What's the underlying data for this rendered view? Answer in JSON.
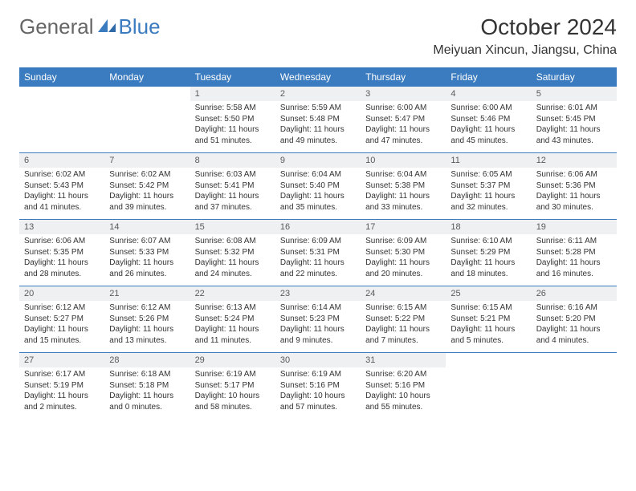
{
  "brand": {
    "part1": "General",
    "part2": "Blue"
  },
  "title": "October 2024",
  "location": "Meiyuan Xincun, Jiangsu, China",
  "colors": {
    "header_bg": "#3b7bbf",
    "header_text": "#ffffff",
    "num_bg": "#eef0f2",
    "rule": "#3b7bbf"
  },
  "day_names": [
    "Sunday",
    "Monday",
    "Tuesday",
    "Wednesday",
    "Thursday",
    "Friday",
    "Saturday"
  ],
  "weeks": [
    [
      null,
      null,
      {
        "n": "1",
        "sunrise": "5:58 AM",
        "sunset": "5:50 PM",
        "daylight": "11 hours and 51 minutes."
      },
      {
        "n": "2",
        "sunrise": "5:59 AM",
        "sunset": "5:48 PM",
        "daylight": "11 hours and 49 minutes."
      },
      {
        "n": "3",
        "sunrise": "6:00 AM",
        "sunset": "5:47 PM",
        "daylight": "11 hours and 47 minutes."
      },
      {
        "n": "4",
        "sunrise": "6:00 AM",
        "sunset": "5:46 PM",
        "daylight": "11 hours and 45 minutes."
      },
      {
        "n": "5",
        "sunrise": "6:01 AM",
        "sunset": "5:45 PM",
        "daylight": "11 hours and 43 minutes."
      }
    ],
    [
      {
        "n": "6",
        "sunrise": "6:02 AM",
        "sunset": "5:43 PM",
        "daylight": "11 hours and 41 minutes."
      },
      {
        "n": "7",
        "sunrise": "6:02 AM",
        "sunset": "5:42 PM",
        "daylight": "11 hours and 39 minutes."
      },
      {
        "n": "8",
        "sunrise": "6:03 AM",
        "sunset": "5:41 PM",
        "daylight": "11 hours and 37 minutes."
      },
      {
        "n": "9",
        "sunrise": "6:04 AM",
        "sunset": "5:40 PM",
        "daylight": "11 hours and 35 minutes."
      },
      {
        "n": "10",
        "sunrise": "6:04 AM",
        "sunset": "5:38 PM",
        "daylight": "11 hours and 33 minutes."
      },
      {
        "n": "11",
        "sunrise": "6:05 AM",
        "sunset": "5:37 PM",
        "daylight": "11 hours and 32 minutes."
      },
      {
        "n": "12",
        "sunrise": "6:06 AM",
        "sunset": "5:36 PM",
        "daylight": "11 hours and 30 minutes."
      }
    ],
    [
      {
        "n": "13",
        "sunrise": "6:06 AM",
        "sunset": "5:35 PM",
        "daylight": "11 hours and 28 minutes."
      },
      {
        "n": "14",
        "sunrise": "6:07 AM",
        "sunset": "5:33 PM",
        "daylight": "11 hours and 26 minutes."
      },
      {
        "n": "15",
        "sunrise": "6:08 AM",
        "sunset": "5:32 PM",
        "daylight": "11 hours and 24 minutes."
      },
      {
        "n": "16",
        "sunrise": "6:09 AM",
        "sunset": "5:31 PM",
        "daylight": "11 hours and 22 minutes."
      },
      {
        "n": "17",
        "sunrise": "6:09 AM",
        "sunset": "5:30 PM",
        "daylight": "11 hours and 20 minutes."
      },
      {
        "n": "18",
        "sunrise": "6:10 AM",
        "sunset": "5:29 PM",
        "daylight": "11 hours and 18 minutes."
      },
      {
        "n": "19",
        "sunrise": "6:11 AM",
        "sunset": "5:28 PM",
        "daylight": "11 hours and 16 minutes."
      }
    ],
    [
      {
        "n": "20",
        "sunrise": "6:12 AM",
        "sunset": "5:27 PM",
        "daylight": "11 hours and 15 minutes."
      },
      {
        "n": "21",
        "sunrise": "6:12 AM",
        "sunset": "5:26 PM",
        "daylight": "11 hours and 13 minutes."
      },
      {
        "n": "22",
        "sunrise": "6:13 AM",
        "sunset": "5:24 PM",
        "daylight": "11 hours and 11 minutes."
      },
      {
        "n": "23",
        "sunrise": "6:14 AM",
        "sunset": "5:23 PM",
        "daylight": "11 hours and 9 minutes."
      },
      {
        "n": "24",
        "sunrise": "6:15 AM",
        "sunset": "5:22 PM",
        "daylight": "11 hours and 7 minutes."
      },
      {
        "n": "25",
        "sunrise": "6:15 AM",
        "sunset": "5:21 PM",
        "daylight": "11 hours and 5 minutes."
      },
      {
        "n": "26",
        "sunrise": "6:16 AM",
        "sunset": "5:20 PM",
        "daylight": "11 hours and 4 minutes."
      }
    ],
    [
      {
        "n": "27",
        "sunrise": "6:17 AM",
        "sunset": "5:19 PM",
        "daylight": "11 hours and 2 minutes."
      },
      {
        "n": "28",
        "sunrise": "6:18 AM",
        "sunset": "5:18 PM",
        "daylight": "11 hours and 0 minutes."
      },
      {
        "n": "29",
        "sunrise": "6:19 AM",
        "sunset": "5:17 PM",
        "daylight": "10 hours and 58 minutes."
      },
      {
        "n": "30",
        "sunrise": "6:19 AM",
        "sunset": "5:16 PM",
        "daylight": "10 hours and 57 minutes."
      },
      {
        "n": "31",
        "sunrise": "6:20 AM",
        "sunset": "5:16 PM",
        "daylight": "10 hours and 55 minutes."
      },
      null,
      null
    ]
  ],
  "labels": {
    "sunrise": "Sunrise: ",
    "sunset": "Sunset: ",
    "daylight": "Daylight: "
  }
}
